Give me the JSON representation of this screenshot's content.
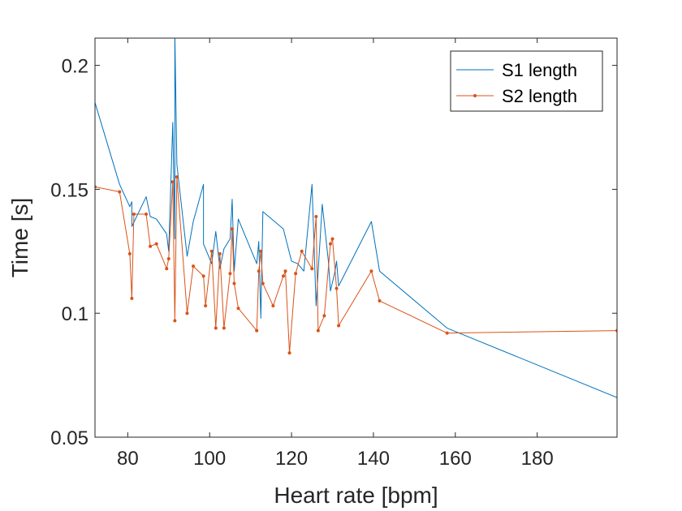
{
  "chart_data": {
    "type": "line",
    "xlabel": "Heart rate [bpm]",
    "ylabel": "Time [s]",
    "xlim": [
      72,
      199.5
    ],
    "ylim": [
      0.05,
      0.211
    ],
    "xticks": [
      80,
      100,
      120,
      140,
      160,
      180
    ],
    "xtick_labels": [
      "80",
      "100",
      "120",
      "140",
      "160",
      "180"
    ],
    "yticks": [
      0.05,
      0.1,
      0.15,
      0.2
    ],
    "ytick_labels": [
      "0.05",
      "0.1",
      "0.15",
      "0.2"
    ],
    "grid": false,
    "legend_position": "top-right",
    "series": [
      {
        "name": "S1 length",
        "color": "#0072BD",
        "marker": "none",
        "x": [
          72,
          78,
          80.5,
          81,
          81,
          84.5,
          85.5,
          87,
          89.5,
          90,
          91,
          91.5,
          91.5,
          92,
          94.5,
          96,
          98.5,
          98.5,
          100.5,
          101.5,
          102.5,
          103.5,
          105,
          105.5,
          106,
          107,
          111.5,
          112,
          112.5,
          113,
          118,
          120,
          121.5,
          123,
          125,
          126,
          127.5,
          129,
          129.5,
          130.5,
          131,
          131.5,
          139.5,
          141.5,
          158,
          199.5
        ],
        "y": [
          0.185,
          0.152,
          0.143,
          0.145,
          0.135,
          0.147,
          0.139,
          0.138,
          0.132,
          0.125,
          0.177,
          0.13,
          0.213,
          0.16,
          0.123,
          0.137,
          0.152,
          0.128,
          0.12,
          0.133,
          0.118,
          0.126,
          0.13,
          0.146,
          0.117,
          0.138,
          0.12,
          0.129,
          0.098,
          0.141,
          0.134,
          0.121,
          0.12,
          0.117,
          0.152,
          0.103,
          0.144,
          0.121,
          0.109,
          0.116,
          0.121,
          0.111,
          0.137,
          0.117,
          0.094,
          0.066
        ]
      },
      {
        "name": "S2 length",
        "color": "#D95319",
        "marker": "dot",
        "x": [
          72,
          78,
          80.5,
          81,
          81.5,
          84.5,
          85.5,
          87,
          89.5,
          90,
          91,
          91.5,
          92,
          94.5,
          96,
          98.5,
          99,
          100.5,
          101.5,
          102.5,
          103.5,
          105,
          105.5,
          106,
          107,
          111.5,
          112,
          112.5,
          113,
          115.5,
          118,
          118.5,
          119.5,
          121,
          122.5,
          125,
          126,
          126.5,
          128,
          129.5,
          130,
          131,
          131.5,
          139.5,
          141.5,
          158,
          199.5
        ],
        "y": [
          0.151,
          0.149,
          0.124,
          0.106,
          0.14,
          0.14,
          0.127,
          0.128,
          0.118,
          0.122,
          0.153,
          0.097,
          0.155,
          0.1,
          0.119,
          0.115,
          0.103,
          0.125,
          0.094,
          0.124,
          0.094,
          0.116,
          0.134,
          0.112,
          0.102,
          0.093,
          0.117,
          0.125,
          0.112,
          0.103,
          0.115,
          0.117,
          0.084,
          0.116,
          0.125,
          0.118,
          0.139,
          0.093,
          0.099,
          0.128,
          0.13,
          0.11,
          0.095,
          0.117,
          0.105,
          0.092,
          0.093
        ]
      }
    ]
  }
}
